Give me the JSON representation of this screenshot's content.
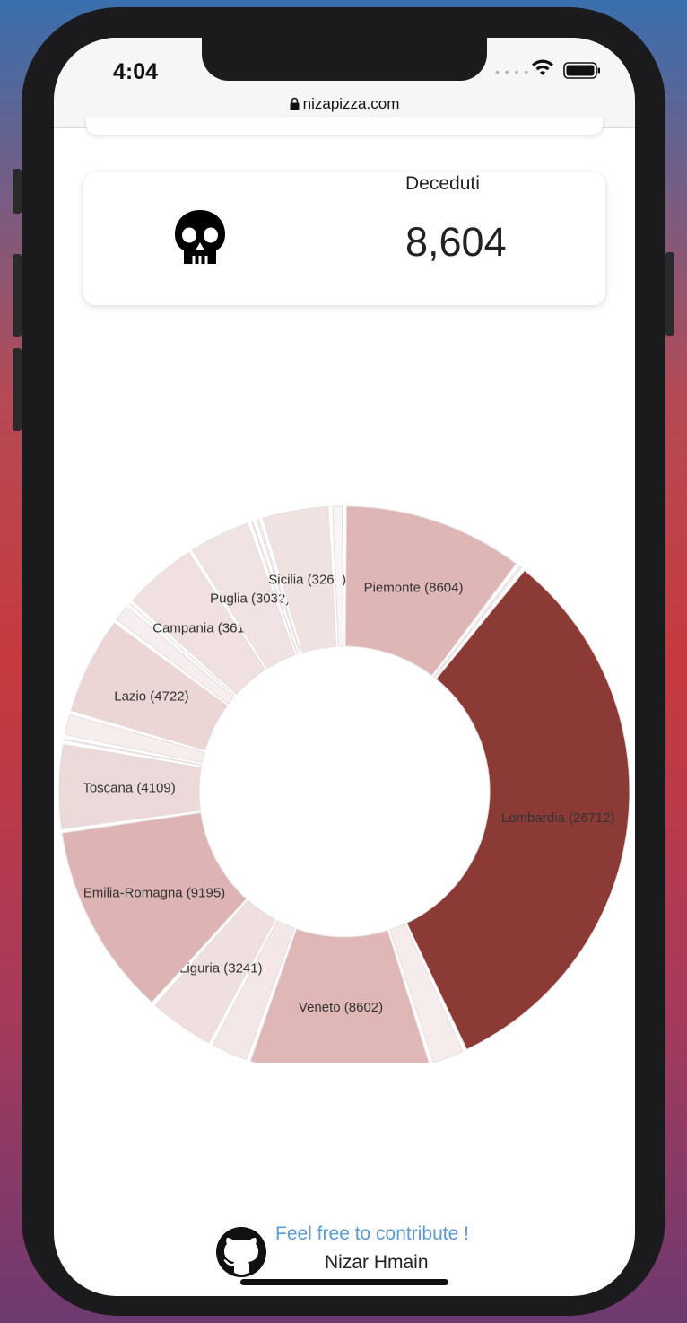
{
  "status_bar": {
    "time": "4:04",
    "signal_icon": "signal-dots",
    "wifi_icon": "wifi-icon",
    "battery_icon": "battery-icon"
  },
  "browser": {
    "url": "nizapizza.com",
    "lock_icon": "lock-icon"
  },
  "stat_card": {
    "icon": "skull-icon",
    "label": "Deceduti",
    "value": "8,604"
  },
  "chart_data": {
    "type": "pie",
    "variant": "donut",
    "title": "",
    "segments": [
      {
        "label": "Piemonte (8604)",
        "name": "Piemonte",
        "value": 8604,
        "color": "#dfb6b6"
      },
      {
        "label": "",
        "name": "",
        "value": 296,
        "color": "#f7eeee"
      },
      {
        "label": "Lombardia (26712)",
        "name": "Lombardia",
        "value": 26712,
        "color": "#8b3a36"
      },
      {
        "label": "",
        "name": "",
        "value": 1650,
        "color": "#f6ecec"
      },
      {
        "label": "Veneto (8602)",
        "name": "Veneto",
        "value": 8602,
        "color": "#dfb7b7"
      },
      {
        "label": "",
        "name": "",
        "value": 1900,
        "color": "#f4e7e7"
      },
      {
        "label": "Liguria (3241)",
        "name": "Liguria",
        "value": 3241,
        "color": "#f0dfdf"
      },
      {
        "label": "Emilia-Romagna (9195)",
        "name": "Emilia-Romagna",
        "value": 9195,
        "color": "#ddb3b3"
      },
      {
        "label": "Toscana (4109)",
        "name": "Toscana",
        "value": 4109,
        "color": "#ecd9d9"
      },
      {
        "label": "",
        "name": "",
        "value": 250,
        "color": "#faf4f4"
      },
      {
        "label": "",
        "name": "",
        "value": 1150,
        "color": "#f6eded"
      },
      {
        "label": "Lazio (4722)",
        "name": "Lazio",
        "value": 4722,
        "color": "#ebd5d5"
      },
      {
        "label": "",
        "name": "",
        "value": 950,
        "color": "#f7efef"
      },
      {
        "label": "",
        "name": "",
        "value": 200,
        "color": "#faf5f5"
      },
      {
        "label": "Campania (3618)",
        "name": "Campania",
        "value": 3618,
        "color": "#f0e0e0"
      },
      {
        "label": "Puglia (3032)",
        "name": "Puglia",
        "value": 3032,
        "color": "#f1e3e3"
      },
      {
        "label": "",
        "name": "",
        "value": 250,
        "color": "#f9f2f2"
      },
      {
        "label": "",
        "name": "",
        "value": 300,
        "color": "#f9f2f2"
      },
      {
        "label": "Sicilia (3260)",
        "name": "Sicilia",
        "value": 3260,
        "color": "#f1e2e2"
      },
      {
        "label": "",
        "name": "",
        "value": 650,
        "color": "#faf5f5"
      }
    ]
  },
  "footer": {
    "icon": "github-icon",
    "link_text": "Feel free to contribute !",
    "author": "Nizar Hmain"
  }
}
